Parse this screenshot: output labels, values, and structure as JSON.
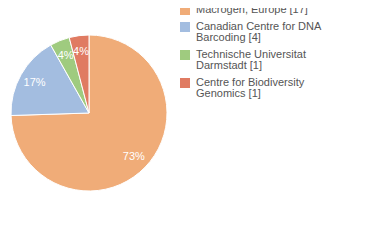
{
  "chart_data": {
    "type": "pie",
    "categories": [
      "Macrogen, Europe [17]",
      "Canadian Centre for DNA Barcoding [4]",
      "Technische Universitat Darmstadt [1]",
      "Centre for Biodiversity Genomics [1]"
    ],
    "values": [
      73,
      17,
      4,
      4
    ],
    "value_labels": [
      "73%",
      "17%",
      "4%",
      "4%"
    ],
    "data_labels": true,
    "colors": [
      "#f0ac78",
      "#a3bde0",
      "#9fcb7f",
      "#e07b62"
    ],
    "legend": "right"
  }
}
